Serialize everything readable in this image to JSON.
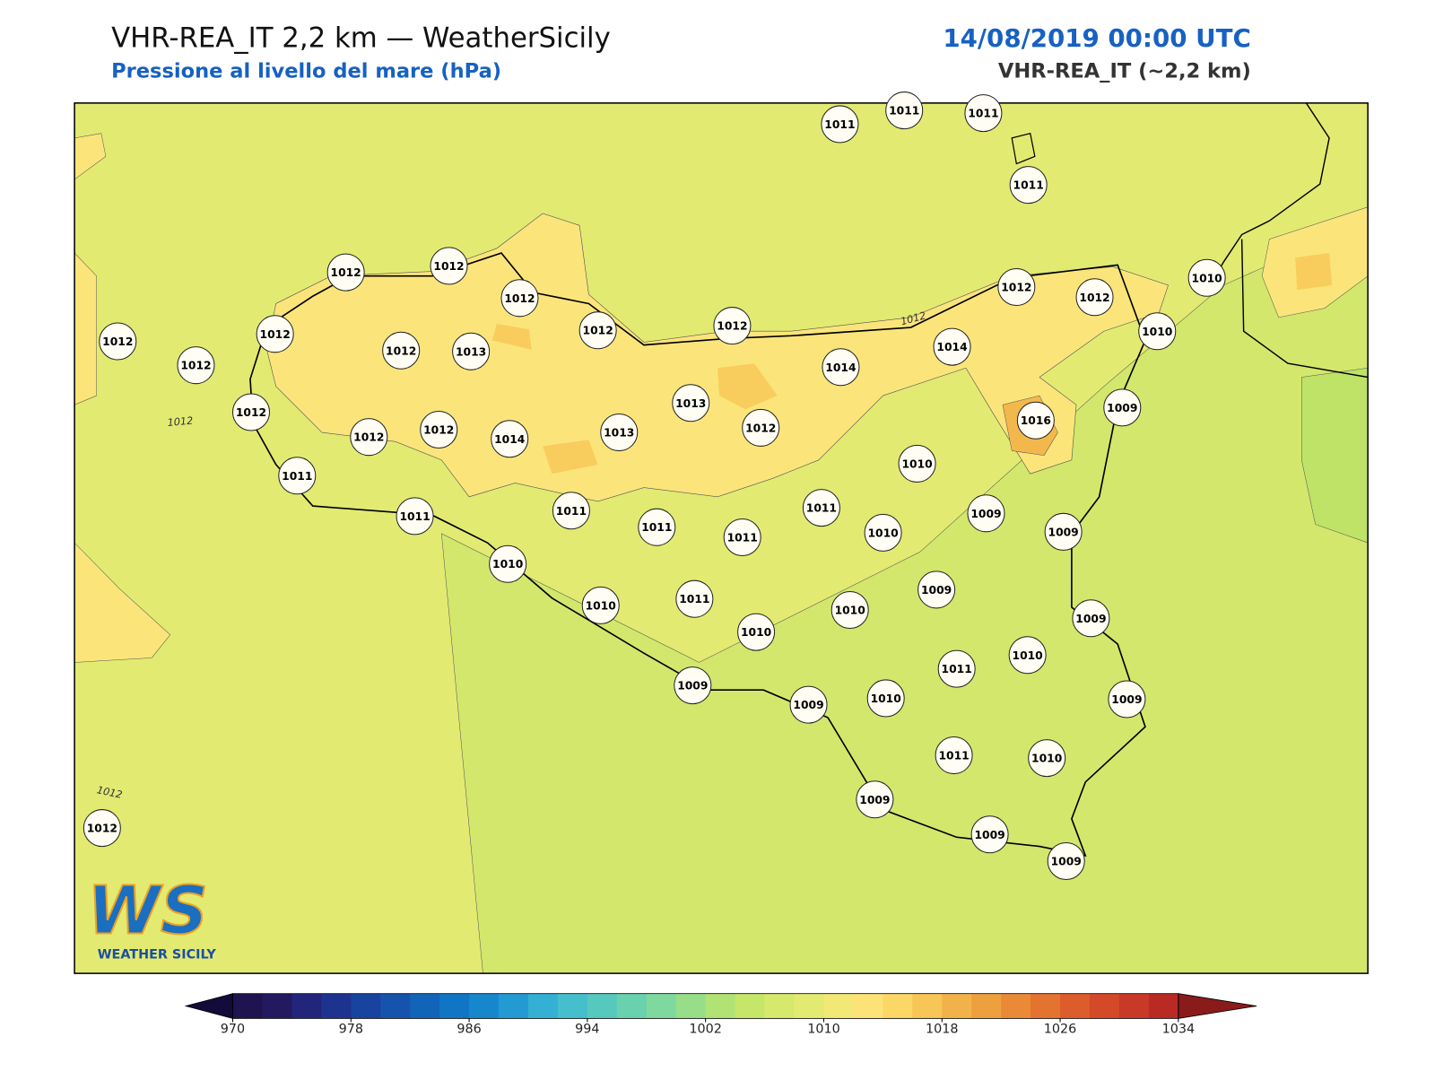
{
  "header": {
    "title": "VHR-REA_IT 2,2 km — WeatherSicily",
    "subtitle": "Pressione al livello del mare (hPa)",
    "datetime": "14/08/2019 00:00 UTC",
    "model": "VHR-REA_IT (~2,2 km)"
  },
  "stations": [
    1011,
    1011,
    1011,
    1011,
    1012,
    1012,
    1012,
    1012,
    1012,
    1012,
    1012,
    1013,
    1012,
    1012,
    1012,
    1012,
    1010,
    1010,
    1014,
    1014,
    1012,
    1012,
    1012,
    1014,
    1013,
    1013,
    1012,
    1016,
    1009,
    1011,
    1011,
    1011,
    1011,
    1011,
    1011,
    1010,
    1009,
    1009,
    1010,
    1010,
    1010,
    1011,
    1010,
    1010,
    1009,
    1009,
    1011,
    1010,
    1009,
    1009,
    1010,
    1009,
    1011,
    1010,
    1009,
    1009,
    1009,
    1012
  ],
  "contour_labels": [
    1012,
    1012,
    1012
  ],
  "colorbar": {
    "range": [
      970,
      1034
    ],
    "ticks": [
      970,
      978,
      986,
      994,
      1002,
      1010,
      1018,
      1026,
      1034
    ],
    "colors": [
      "#1f1450",
      "#23195e",
      "#22257a",
      "#1d338e",
      "#18439f",
      "#1553ad",
      "#1264b8",
      "#0f75c4",
      "#1787cd",
      "#249ad2",
      "#33b0d4",
      "#45bfcc",
      "#56c9be",
      "#69d1ae",
      "#7fd89d",
      "#98de88",
      "#b0e374",
      "#c6e66a",
      "#d6e96c",
      "#e3ea72",
      "#f1e875",
      "#fde277",
      "#fbd766",
      "#f7c656",
      "#f2b24a",
      "#eea03f",
      "#ea8a36",
      "#e4732f",
      "#dd5c2b",
      "#d44a29",
      "#c83a27",
      "#b92a25"
    ],
    "under": "#130b3a",
    "over": "#8a1b1b"
  },
  "logo": {
    "mark": "WS",
    "text": "WEATHER SICILY"
  }
}
